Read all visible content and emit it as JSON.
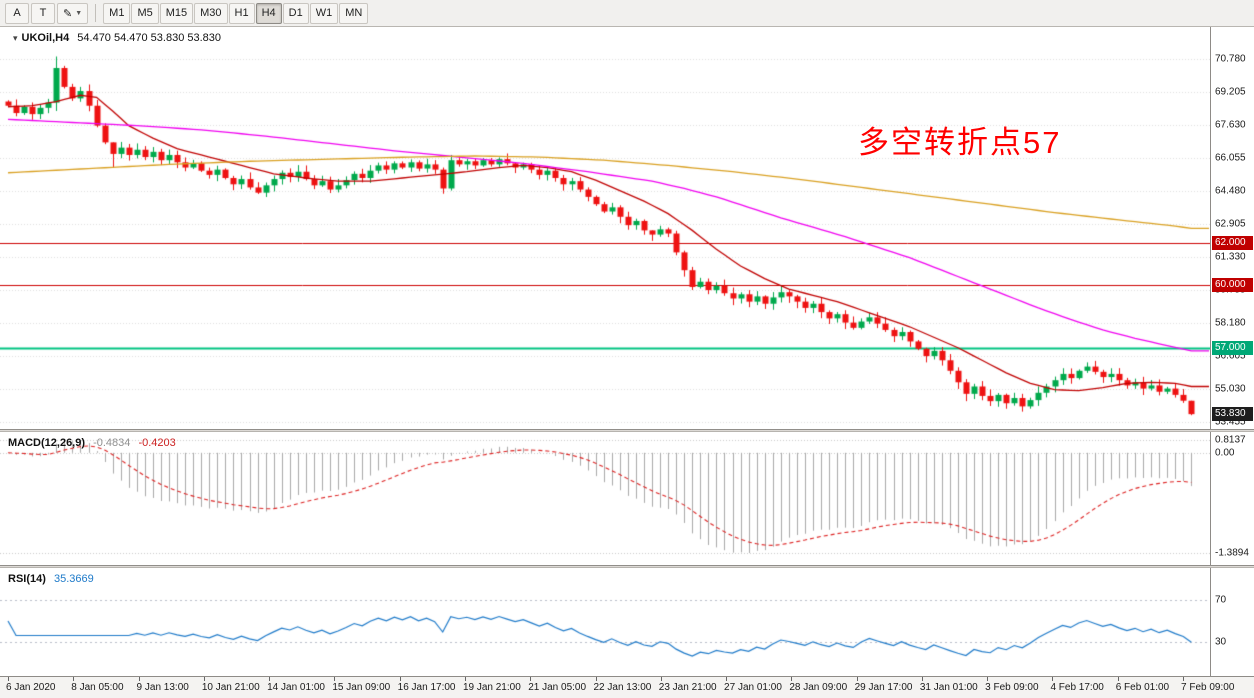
{
  "toolbar": {
    "tool_buttons": [
      {
        "label": "A"
      },
      {
        "label": "T"
      },
      {
        "label": "✎"
      }
    ],
    "timeframes": [
      "M1",
      "M5",
      "M15",
      "M30",
      "H1",
      "H4",
      "D1",
      "W1",
      "MN"
    ],
    "active_timeframe": "H4"
  },
  "main_chart": {
    "collapse_icon": "▾",
    "title_symbol": "UKOil,H4",
    "title_ohlc": "54.470 54.470 53.830 53.830",
    "annotation": {
      "text": "多空转折点57",
      "color": "#FF0000"
    },
    "colors": {
      "up": "#00A94C",
      "down": "#EE1212",
      "grid": "#DEDEDE",
      "ma_fast": "#C00000",
      "ma_mid": "#F000F0",
      "ma_slow": "#D9A021"
    }
  },
  "chart_data": {
    "type": "candlestick",
    "symbol": "UKOil",
    "period": "H4",
    "ohlc_display": {
      "open": "54.470",
      "high": "54.470",
      "low": "53.830",
      "close": "53.830"
    },
    "price_ticks": [
      "70.780",
      "69.205",
      "67.630",
      "66.055",
      "64.480",
      "62.905",
      "61.330",
      "59.755",
      "58.180",
      "56.605",
      "55.030",
      "53.455"
    ],
    "price_flags": [
      {
        "text": "62.000",
        "value": 62.0,
        "color": "#C00000"
      },
      {
        "text": "60.000",
        "value": 60.0,
        "color": "#C00000"
      },
      {
        "text": "57.000",
        "value": 57.0,
        "color": "#00A876"
      },
      {
        "text": "53.830",
        "value": 53.83,
        "color": "#1E1E1E"
      }
    ],
    "hlines": [
      {
        "value": 62.0,
        "color": "#CC0000",
        "width": 1
      },
      {
        "value": 60.0,
        "color": "#CC0000",
        "width": 1
      },
      {
        "value": 57.0,
        "color": "#00C482",
        "width": 2
      }
    ],
    "time_labels": [
      "6 Jan 2020",
      "8 Jan 05:00",
      "9 Jan 13:00",
      "10 Jan 21:00",
      "14 Jan 01:00",
      "15 Jan 09:00",
      "16 Jan 17:00",
      "19 Jan 21:00",
      "21 Jan 05:00",
      "22 Jan 13:00",
      "23 Jan 21:00",
      "27 Jan 01:00",
      "28 Jan 09:00",
      "29 Jan 17:00",
      "31 Jan 01:00",
      "3 Feb 09:00",
      "4 Feb 17:00",
      "6 Feb 01:00",
      "7 Feb 09:00"
    ],
    "open_first": 68.75,
    "closes": [
      68.55,
      68.2,
      68.5,
      68.15,
      68.45,
      68.7,
      70.35,
      69.45,
      68.9,
      69.25,
      68.55,
      67.6,
      66.8,
      66.25,
      66.55,
      66.2,
      66.45,
      66.1,
      66.35,
      65.95,
      66.2,
      65.85,
      65.6,
      65.8,
      65.45,
      65.25,
      65.5,
      65.1,
      64.8,
      65.05,
      64.65,
      64.4,
      64.75,
      65.05,
      65.35,
      65.15,
      65.4,
      65.05,
      64.75,
      64.95,
      64.55,
      64.75,
      65.0,
      65.3,
      65.1,
      65.45,
      65.7,
      65.5,
      65.8,
      65.6,
      65.85,
      65.55,
      65.75,
      65.5,
      64.6,
      65.95,
      65.75,
      65.9,
      65.7,
      65.95,
      65.75,
      66.0,
      65.8,
      65.6,
      65.75,
      65.5,
      65.25,
      65.45,
      65.1,
      64.8,
      64.95,
      64.55,
      64.2,
      63.85,
      63.5,
      63.7,
      63.25,
      62.85,
      63.05,
      62.6,
      62.4,
      62.65,
      62.45,
      61.55,
      60.7,
      59.9,
      60.15,
      59.75,
      59.95,
      59.6,
      59.35,
      59.55,
      59.2,
      59.45,
      59.1,
      59.4,
      59.65,
      59.45,
      59.2,
      58.9,
      59.1,
      58.7,
      58.4,
      58.6,
      58.2,
      57.95,
      58.25,
      58.45,
      58.15,
      57.85,
      57.55,
      57.75,
      57.3,
      56.95,
      56.6,
      56.85,
      56.4,
      55.9,
      55.35,
      54.8,
      55.15,
      54.7,
      54.45,
      54.75,
      54.35,
      54.6,
      54.2,
      54.5,
      54.85,
      55.15,
      55.45,
      55.75,
      55.55,
      55.9,
      56.1,
      55.85,
      55.6,
      55.75,
      55.45,
      55.2,
      55.35,
      55.05,
      55.2,
      54.9,
      55.05,
      54.75,
      54.47,
      53.83
    ],
    "wick_overrides": {
      "6": [
        70.9,
        68.3
      ],
      "13": [
        66.6,
        65.6
      ],
      "54": [
        65.6,
        64.35
      ],
      "55": [
        66.2,
        64.5
      ],
      "80": [
        62.6,
        62.1
      ],
      "94": [
        59.5,
        58.85
      ],
      "114": [
        57.0,
        56.3
      ],
      "119": [
        55.5,
        54.45
      ],
      "126": [
        54.8,
        53.95
      ],
      "134": [
        56.3,
        55.8
      ],
      "147": [
        54.47,
        53.78
      ]
    },
    "ma_lines": [
      {
        "name": "ma-fast-red",
        "color": "#C00000",
        "points": [
          [
            0,
            68.5
          ],
          [
            3,
            68.55
          ],
          [
            6,
            68.75
          ],
          [
            9,
            69.05
          ],
          [
            11,
            68.95
          ],
          [
            13,
            68.3
          ],
          [
            15,
            67.6
          ],
          [
            18,
            67.0
          ],
          [
            21,
            66.5
          ],
          [
            25,
            66.1
          ],
          [
            29,
            65.7
          ],
          [
            33,
            65.3
          ],
          [
            37,
            65.1
          ],
          [
            41,
            64.95
          ],
          [
            45,
            64.95
          ],
          [
            49,
            65.1
          ],
          [
            53,
            65.25
          ],
          [
            57,
            65.4
          ],
          [
            61,
            65.6
          ],
          [
            64,
            65.7
          ],
          [
            67,
            65.6
          ],
          [
            70,
            65.4
          ],
          [
            73,
            65.0
          ],
          [
            76,
            64.5
          ],
          [
            79,
            64.0
          ],
          [
            82,
            63.4
          ],
          [
            85,
            62.6
          ],
          [
            88,
            61.7
          ],
          [
            91,
            60.9
          ],
          [
            94,
            60.3
          ],
          [
            97,
            59.8
          ],
          [
            100,
            59.5
          ],
          [
            103,
            59.2
          ],
          [
            106,
            58.8
          ],
          [
            109,
            58.4
          ],
          [
            112,
            58.0
          ],
          [
            115,
            57.5
          ],
          [
            118,
            57.0
          ],
          [
            121,
            56.4
          ],
          [
            124,
            55.8
          ],
          [
            127,
            55.3
          ],
          [
            130,
            55.0
          ],
          [
            133,
            54.95
          ],
          [
            136,
            55.1
          ],
          [
            139,
            55.3
          ],
          [
            142,
            55.35
          ],
          [
            145,
            55.3
          ],
          [
            147,
            55.15
          ]
        ]
      },
      {
        "name": "ma-mid-magenta",
        "color": "#F000F0",
        "points": [
          [
            0,
            67.9
          ],
          [
            8,
            67.75
          ],
          [
            16,
            67.6
          ],
          [
            24,
            67.4
          ],
          [
            32,
            67.1
          ],
          [
            40,
            66.75
          ],
          [
            48,
            66.4
          ],
          [
            56,
            66.1
          ],
          [
            64,
            65.8
          ],
          [
            72,
            65.4
          ],
          [
            80,
            64.95
          ],
          [
            84,
            64.6
          ],
          [
            88,
            64.2
          ],
          [
            92,
            63.7
          ],
          [
            96,
            63.2
          ],
          [
            100,
            62.75
          ],
          [
            104,
            62.3
          ],
          [
            108,
            61.8
          ],
          [
            112,
            61.3
          ],
          [
            116,
            60.7
          ],
          [
            120,
            60.1
          ],
          [
            124,
            59.5
          ],
          [
            128,
            58.9
          ],
          [
            132,
            58.35
          ],
          [
            136,
            57.85
          ],
          [
            140,
            57.45
          ],
          [
            144,
            57.1
          ],
          [
            147,
            56.85
          ]
        ]
      },
      {
        "name": "ma-slow-orange",
        "color": "#D9A021",
        "points": [
          [
            0,
            65.35
          ],
          [
            10,
            65.55
          ],
          [
            20,
            65.75
          ],
          [
            30,
            65.9
          ],
          [
            40,
            66.0
          ],
          [
            50,
            66.1
          ],
          [
            58,
            66.15
          ],
          [
            66,
            66.1
          ],
          [
            74,
            65.95
          ],
          [
            82,
            65.7
          ],
          [
            90,
            65.4
          ],
          [
            98,
            65.05
          ],
          [
            106,
            64.65
          ],
          [
            114,
            64.25
          ],
          [
            122,
            63.85
          ],
          [
            130,
            63.45
          ],
          [
            138,
            63.1
          ],
          [
            144,
            62.85
          ],
          [
            147,
            62.7
          ]
        ]
      }
    ]
  },
  "macd": {
    "label": "MACD(12,26,9)",
    "value_main": "-0.4834",
    "value_signal": "-0.4203",
    "axis_max": "0.8137",
    "axis_zero": "0.00",
    "axis_min": "-1.3894",
    "params": {
      "fast": 12,
      "slow": 26,
      "signal": 9
    },
    "colors": {
      "hist": "#A8A8A8",
      "signal": "#DD2222",
      "value_main": "#909090",
      "value_signal": "#CC2222"
    }
  },
  "rsi": {
    "label": "RSI(14)",
    "value": "35.3669",
    "period": 14,
    "levels": [
      70,
      30
    ],
    "level_labels": [
      "70",
      "30"
    ],
    "color": "#1E7AC9"
  }
}
